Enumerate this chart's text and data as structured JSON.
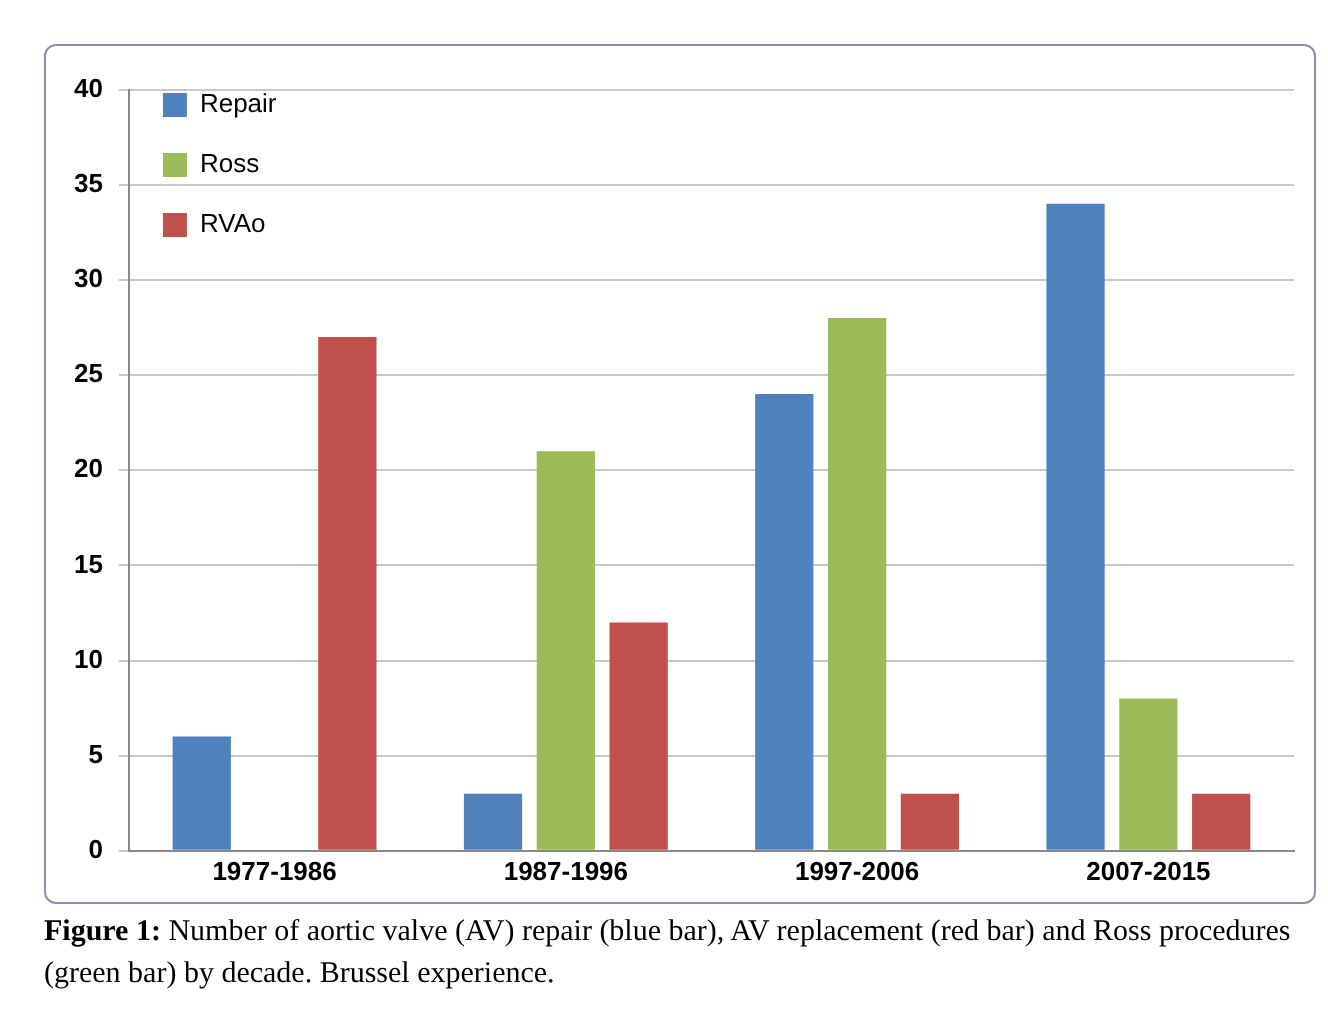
{
  "chart_data": {
    "type": "bar",
    "categories": [
      "1977-1986",
      "1987-1996",
      "1997-2006",
      "2007-2015"
    ],
    "series": [
      {
        "name": "Repair",
        "color": "#4f81bd",
        "values": [
          6,
          3,
          24,
          34
        ]
      },
      {
        "name": "Ross",
        "color": "#9bbb59",
        "values": [
          0,
          21,
          28,
          8
        ]
      },
      {
        "name": "RVAo",
        "color": "#c0504d",
        "values": [
          27,
          12,
          3,
          3
        ]
      }
    ],
    "ylim": [
      0,
      40
    ],
    "yticks": [
      0,
      5,
      10,
      15,
      20,
      25,
      30,
      35,
      40
    ],
    "grid": "y",
    "legend": "top left",
    "annotations": [
      "Figure 1: Number of aortic valve (AV) repair (blue bar), AV replacement (red bar) and Ross procedures (green bar) by decade. Brussel experience."
    ]
  }
}
